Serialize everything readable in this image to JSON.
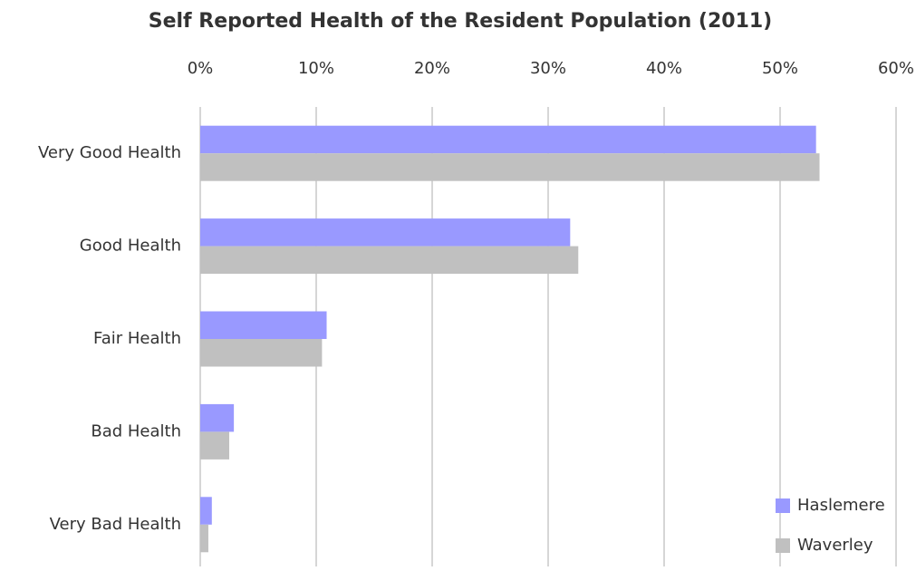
{
  "chart_data": {
    "type": "bar",
    "orientation": "horizontal",
    "title": "Self Reported Health of the Resident Population (2011)",
    "categories": [
      "Very Good Health",
      "Good Health",
      "Fair Health",
      "Bad Health",
      "Very Bad Health"
    ],
    "series": [
      {
        "name": "Haslemere",
        "color": "#9999ff",
        "values": [
          53.1,
          31.9,
          10.9,
          2.9,
          1.0
        ]
      },
      {
        "name": "Waverley",
        "color": "#c0c0c0",
        "values": [
          53.4,
          32.6,
          10.5,
          2.5,
          0.7
        ]
      }
    ],
    "xlim": [
      0,
      60
    ],
    "xticks": [
      {
        "value": 0,
        "label": "0%"
      },
      {
        "value": 10,
        "label": "10%"
      },
      {
        "value": 20,
        "label": "20%"
      },
      {
        "value": 30,
        "label": "30%"
      },
      {
        "value": 40,
        "label": "40%"
      },
      {
        "value": 50,
        "label": "50%"
      },
      {
        "value": 60,
        "label": "60%"
      }
    ],
    "grid": true,
    "legend": "bottom-right"
  }
}
